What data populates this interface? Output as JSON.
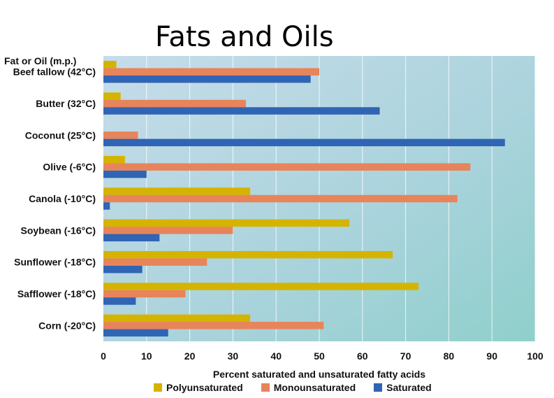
{
  "chart_data": {
    "type": "bar",
    "orientation": "horizontal",
    "title": "Fats and Oils",
    "category_axis_label": "Fat or Oil (m.p.)",
    "xlabel": "Percent saturated and unsaturated fatty acids",
    "xlim": [
      0,
      100
    ],
    "xticks": [
      0,
      10,
      20,
      30,
      40,
      50,
      60,
      70,
      80,
      90,
      100
    ],
    "grid": true,
    "legend_position": "bottom",
    "categories": [
      "Beef tallow (42°C)",
      "Butter (32°C)",
      "Coconut (25°C)",
      "Olive (-6°C)",
      "Canola (-10°C)",
      "Soybean (-16°C)",
      "Sunflower (-18°C)",
      "Safflower (-18°C)",
      "Corn (-20°C)"
    ],
    "series": [
      {
        "name": "Polyunsaturated",
        "color": "#d4b400",
        "values": [
          3,
          4,
          0,
          5,
          34,
          57,
          67,
          73,
          34
        ]
      },
      {
        "name": "Monounsaturated",
        "color": "#e8845a",
        "values": [
          50,
          33,
          8,
          85,
          82,
          30,
          24,
          19,
          51
        ]
      },
      {
        "name": "Saturated",
        "color": "#3064b4",
        "values": [
          48,
          64,
          93,
          10,
          1.5,
          13,
          9,
          7.5,
          15
        ]
      }
    ]
  }
}
